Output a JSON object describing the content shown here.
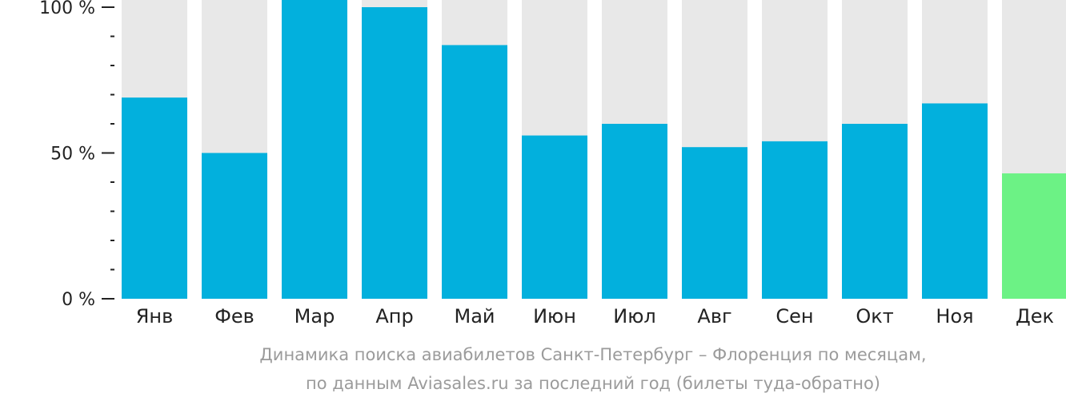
{
  "chart_data": {
    "type": "bar",
    "categories": [
      "Янв",
      "Фев",
      "Мар",
      "Апр",
      "Май",
      "Июн",
      "Июл",
      "Авг",
      "Сен",
      "Окт",
      "Ноя",
      "Дек"
    ],
    "values": [
      69,
      50,
      103,
      100,
      87,
      56,
      60,
      52,
      54,
      60,
      67,
      43
    ],
    "ylim": [
      0,
      100
    ],
    "y_ticks": [
      {
        "value": 100,
        "label": "100 %"
      },
      {
        "value": 50,
        "label": "50 %"
      },
      {
        "value": 0,
        "label": "0 %"
      }
    ],
    "y_minor_tick_step": 10,
    "grid": false,
    "legend": "none",
    "caption": [
      "Динамика поиска авиабилетов Санкт-Петербург – Флоренция по месяцам,",
      "по данным Aviasales.ru за последний год (билеты туда-обратно)"
    ]
  },
  "colors": {
    "bar": "#02b0dd",
    "bar_highlight": "#6cf285",
    "bar_background": "#e8e8e8",
    "axis": "#222222",
    "caption": "#9b9b9b"
  },
  "highlight_category": "Дек"
}
